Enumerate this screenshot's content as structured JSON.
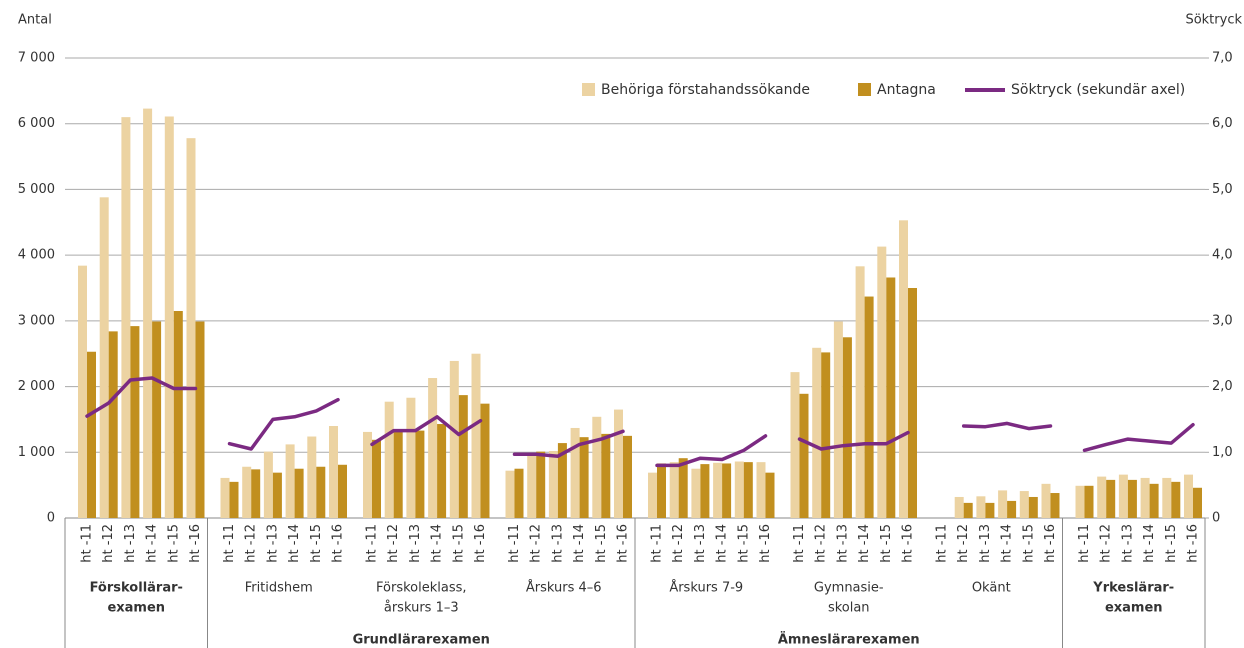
{
  "chart_data": {
    "type": "bar",
    "y_label": "Antal",
    "y2_label": "Söktryck",
    "ylim": [
      0,
      7000
    ],
    "yticks": [
      0,
      {
        "value": 1000,
        "label": "1 000"
      },
      {
        "value": 2000,
        "label": "2 000"
      },
      {
        "value": 3000,
        "label": "3 000"
      },
      {
        "value": 4000,
        "label": "4 000"
      },
      {
        "value": 5000,
        "label": "5 000"
      },
      {
        "value": 6000,
        "label": "6 000"
      },
      {
        "value": 7000,
        "label": "7 000"
      }
    ],
    "y2lim": [
      0,
      7
    ],
    "y2ticks": [
      0,
      {
        "value": 1,
        "label": "1,0"
      },
      {
        "value": 2,
        "label": "2,0"
      },
      {
        "value": 3,
        "label": "3,0"
      },
      {
        "value": 4,
        "label": "4,0"
      },
      {
        "value": 5,
        "label": "5,0"
      },
      {
        "value": 6,
        "label": "6,0"
      },
      {
        "value": 7,
        "label": "7,0"
      }
    ],
    "grid": true,
    "legend": "upper right",
    "sections": [
      {
        "groups": [
          {
            "name": [
              "Förskollärar-",
              "examen"
            ],
            "categories": [
              "ht -11",
              "ht -12",
              "ht -13",
              "ht -14",
              "ht -15",
              "ht -16"
            ]
          }
        ]
      },
      {
        "name": "Grundlärarexamen",
        "groups": [
          {
            "name": [
              "Fritidshem"
            ],
            "categories": [
              "ht -11",
              "ht -12",
              "ht -13",
              "ht -14",
              "ht -15",
              "ht -16"
            ]
          },
          {
            "name": [
              "Förskoleklass,",
              "årskurs 1–3"
            ],
            "categories": [
              "ht -11",
              "ht -12",
              "ht -13",
              "ht -14",
              "ht -15",
              "ht -16"
            ]
          },
          {
            "name": [
              "Årskurs 4–6"
            ],
            "categories": [
              "ht -11",
              "ht -12",
              "ht -13",
              "ht -14",
              "ht -15",
              "ht -16"
            ]
          }
        ]
      },
      {
        "name": "Ämneslärarexamen",
        "groups": [
          {
            "name": [
              "Årskurs 7-9"
            ],
            "categories": [
              "ht -11",
              "ht -12",
              "ht -13",
              "ht -14",
              "ht -15",
              "ht -16"
            ]
          },
          {
            "name": [
              "Gymnasie-",
              "skolan"
            ],
            "categories": [
              "ht -11",
              "ht -12",
              "ht -13",
              "ht -14",
              "ht -15",
              "ht -16"
            ]
          },
          {
            "name": [
              "Okänt"
            ],
            "categories": [
              "ht -11",
              "ht -12",
              "ht -13",
              "ht -14",
              "ht -15",
              "ht -16"
            ]
          }
        ]
      },
      {
        "groups": [
          {
            "name": [
              "Yrkeslärar-",
              "examen"
            ],
            "categories": [
              "ht -11",
              "ht -12",
              "ht -13",
              "ht -14",
              "ht -15",
              "ht -16"
            ]
          }
        ]
      }
    ],
    "series": [
      {
        "name": "Behöriga förstahandssökande",
        "color": "#ecd3a2",
        "type": "bar",
        "values": [
          3840,
          4880,
          6100,
          6230,
          6110,
          5780,
          610,
          780,
          1010,
          1120,
          1240,
          1400,
          1310,
          1770,
          1830,
          2130,
          2390,
          2500,
          720,
          980,
          1020,
          1370,
          1540,
          1650,
          690,
          850,
          750,
          840,
          860,
          850,
          2220,
          2590,
          2990,
          3830,
          4130,
          4530,
          null,
          320,
          330,
          420,
          410,
          520,
          490,
          630,
          660,
          610,
          610,
          660
        ]
      },
      {
        "name": "Antagna",
        "color": "#c18f1f",
        "type": "bar",
        "values": [
          2530,
          2840,
          2920,
          2990,
          3150,
          2990,
          550,
          740,
          690,
          750,
          780,
          810,
          1190,
          1320,
          1330,
          1430,
          1870,
          1740,
          750,
          1010,
          1140,
          1230,
          1280,
          1250,
          830,
          910,
          820,
          830,
          850,
          690,
          1890,
          2520,
          2750,
          3370,
          3660,
          3500,
          null,
          230,
          230,
          260,
          320,
          380,
          490,
          580,
          580,
          520,
          550,
          460
        ]
      },
      {
        "name": "Söktryck (sekundär axel)",
        "color": "#7b2a82",
        "type": "line",
        "axis": "y2",
        "values": [
          1.55,
          1.75,
          2.1,
          2.13,
          1.97,
          1.97,
          1.13,
          1.05,
          1.5,
          1.54,
          1.63,
          1.8,
          1.12,
          1.33,
          1.33,
          1.54,
          1.27,
          1.48,
          0.97,
          0.97,
          0.94,
          1.12,
          1.2,
          1.32,
          0.8,
          0.8,
          0.91,
          0.89,
          1.03,
          1.25,
          1.2,
          1.05,
          1.1,
          1.13,
          1.13,
          1.3,
          null,
          1.4,
          1.39,
          1.44,
          1.36,
          1.4,
          1.03,
          1.12,
          1.2,
          1.17,
          1.14,
          1.42
        ]
      }
    ]
  }
}
